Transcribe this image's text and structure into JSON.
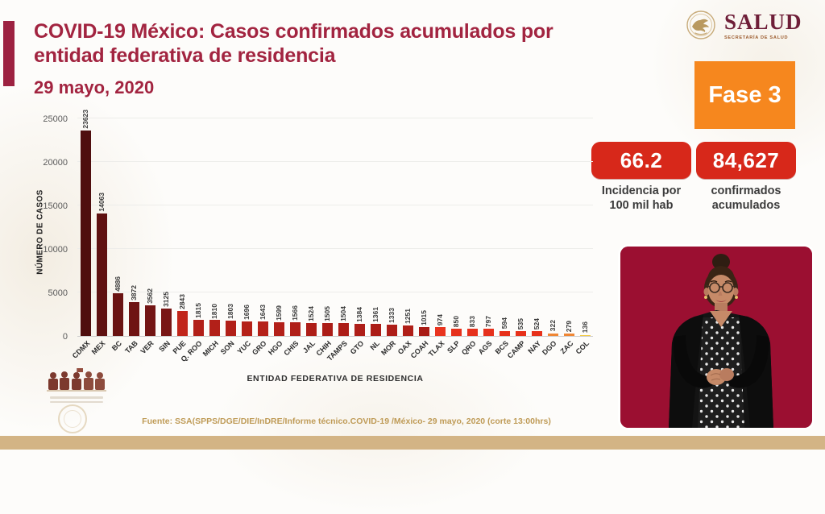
{
  "header": {
    "title_line1": "COVID-19 México: Casos confirmados acumulados por",
    "title_line2": "entidad federativa de residencia",
    "date": "29 mayo, 2020"
  },
  "logo": {
    "name": "SALUD",
    "subtitle": "SECRETARÍA DE SALUD"
  },
  "phase_badge": {
    "label": "Fase 3",
    "color": "#f6871e"
  },
  "stats": [
    {
      "value": "66.2",
      "label_line1": "Incidencia por",
      "label_line2": "100 mil hab",
      "color": "#d7281a"
    },
    {
      "value": "84,627",
      "label_line1": "confirmados",
      "label_line2": "acumulados",
      "color": "#d7281a"
    }
  ],
  "chart_data": {
    "type": "bar",
    "title": "Casos confirmados acumulados por entidad federativa de residencia",
    "xlabel": "ENTIDAD FEDERATIVA DE RESIDENCIA",
    "ylabel": "NÚMERO DE CASOS",
    "ylim": [
      0,
      25000
    ],
    "ytick_step": 5000,
    "yticks": [
      "0",
      "5000",
      "10000",
      "15000",
      "20000",
      "25000"
    ],
    "grid": true,
    "legend": false,
    "categories": [
      "CDMX",
      "MEX",
      "BC",
      "TAB",
      "VER",
      "SIN",
      "PUE",
      "Q. ROO",
      "MICH",
      "SON",
      "YUC",
      "GRO",
      "HGO",
      "CHIS",
      "JAL",
      "CHIH",
      "TAMPS",
      "GTO",
      "NL",
      "MOR",
      "OAX",
      "COAH",
      "TLAX",
      "SLP",
      "QRO",
      "AGS",
      "BCS",
      "CAMP",
      "NAY",
      "DGO",
      "ZAC",
      "COL"
    ],
    "values": [
      23623,
      14063,
      4886,
      3872,
      3562,
      3125,
      2843,
      1815,
      1810,
      1803,
      1696,
      1643,
      1599,
      1566,
      1524,
      1505,
      1504,
      1384,
      1361,
      1333,
      1251,
      1015,
      974,
      850,
      833,
      797,
      594,
      535,
      524,
      322,
      279,
      136
    ],
    "bar_colors": [
      "#4f0e0e",
      "#5f1111",
      "#6a1312",
      "#6f1413",
      "#731514",
      "#791615",
      "#c1261b",
      "#b22019",
      "#b22019",
      "#b22019",
      "#b52119",
      "#b52119",
      "#b32019",
      "#b01f18",
      "#ae1e18",
      "#ac1d17",
      "#ac1d17",
      "#ae1e18",
      "#ac1d17",
      "#ae1e18",
      "#b01f18",
      "#a91c16",
      "#e9341f",
      "#e6311c",
      "#e6311c",
      "#e6311c",
      "#e7311b",
      "#e7311b",
      "#e7311b",
      "#ef8634",
      "#ef8634",
      "#f3ca3e"
    ]
  },
  "footer": {
    "source": "Fuente: SSA(SPPS/DGE/DIE/InDRE/Informe técnico.COVID-19 /México- 29 mayo, 2020 (corte 13:00hrs)"
  },
  "colors": {
    "wine": "#9d2241",
    "phase_orange": "#f6871e",
    "badge_red": "#d7281a",
    "gold_band": "#d3b485",
    "interpreter_bg": "#9b0f31"
  }
}
